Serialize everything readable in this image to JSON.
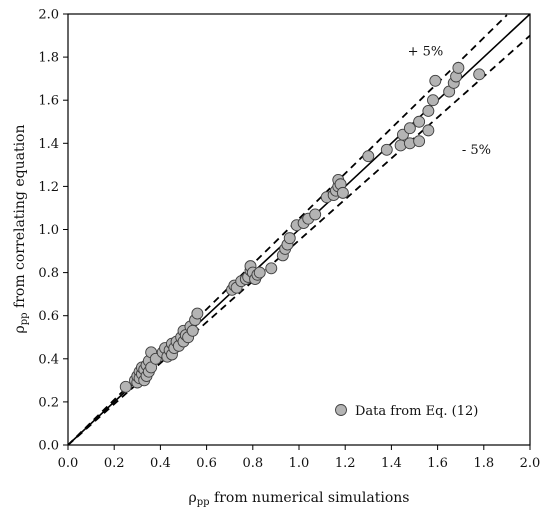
{
  "chart_data": {
    "type": "scatter",
    "xlabel": {
      "main": "ρ",
      "sub": "pp",
      "rest": " from numerical simulations"
    },
    "ylabel": {
      "main": "ρ",
      "sub": "pp",
      "rest": " from correlating equation"
    },
    "xlim": [
      0,
      2.0
    ],
    "ylim": [
      0,
      2.0
    ],
    "x_ticks": [
      "0.0",
      "0.2",
      "0.4",
      "0.6",
      "0.8",
      "1.0",
      "1.2",
      "1.4",
      "1.6",
      "1.8",
      "2.0"
    ],
    "y_ticks": [
      "0.0",
      "0.2",
      "0.4",
      "0.6",
      "0.8",
      "1.0",
      "1.2",
      "1.4",
      "1.6",
      "1.8",
      "2.0"
    ],
    "grid": false,
    "legend_position": "bottom-right",
    "colors": {
      "marker_fill": "#b4b4b4",
      "marker_stroke": "#404040",
      "line": "#000000"
    },
    "series": [
      {
        "name": "Data from Eq. (12)",
        "points": [
          [
            0.25,
            0.27
          ],
          [
            0.29,
            0.3
          ],
          [
            0.3,
            0.29
          ],
          [
            0.3,
            0.32
          ],
          [
            0.31,
            0.34
          ],
          [
            0.31,
            0.31
          ],
          [
            0.32,
            0.33
          ],
          [
            0.32,
            0.36
          ],
          [
            0.33,
            0.3
          ],
          [
            0.33,
            0.35
          ],
          [
            0.34,
            0.32
          ],
          [
            0.34,
            0.37
          ],
          [
            0.35,
            0.34
          ],
          [
            0.35,
            0.39
          ],
          [
            0.36,
            0.36
          ],
          [
            0.36,
            0.43
          ],
          [
            0.38,
            0.4
          ],
          [
            0.41,
            0.43
          ],
          [
            0.42,
            0.45
          ],
          [
            0.43,
            0.41
          ],
          [
            0.44,
            0.44
          ],
          [
            0.45,
            0.47
          ],
          [
            0.45,
            0.42
          ],
          [
            0.46,
            0.45
          ],
          [
            0.47,
            0.48
          ],
          [
            0.48,
            0.46
          ],
          [
            0.49,
            0.5
          ],
          [
            0.5,
            0.48
          ],
          [
            0.5,
            0.53
          ],
          [
            0.51,
            0.51
          ],
          [
            0.52,
            0.5
          ],
          [
            0.53,
            0.55
          ],
          [
            0.54,
            0.53
          ],
          [
            0.55,
            0.58
          ],
          [
            0.56,
            0.61
          ],
          [
            0.71,
            0.72
          ],
          [
            0.72,
            0.74
          ],
          [
            0.73,
            0.73
          ],
          [
            0.75,
            0.76
          ],
          [
            0.77,
            0.77
          ],
          [
            0.78,
            0.78
          ],
          [
            0.79,
            0.81
          ],
          [
            0.79,
            0.83
          ],
          [
            0.8,
            0.8
          ],
          [
            0.81,
            0.77
          ],
          [
            0.82,
            0.79
          ],
          [
            0.83,
            0.8
          ],
          [
            0.88,
            0.82
          ],
          [
            0.93,
            0.88
          ],
          [
            0.94,
            0.91
          ],
          [
            0.95,
            0.93
          ],
          [
            0.96,
            0.96
          ],
          [
            0.99,
            1.02
          ],
          [
            1.02,
            1.03
          ],
          [
            1.04,
            1.05
          ],
          [
            1.07,
            1.07
          ],
          [
            1.12,
            1.15
          ],
          [
            1.15,
            1.16
          ],
          [
            1.16,
            1.18
          ],
          [
            1.17,
            1.2
          ],
          [
            1.17,
            1.23
          ],
          [
            1.18,
            1.21
          ],
          [
            1.19,
            1.17
          ],
          [
            1.3,
            1.34
          ],
          [
            1.38,
            1.37
          ],
          [
            1.44,
            1.39
          ],
          [
            1.45,
            1.44
          ],
          [
            1.48,
            1.4
          ],
          [
            1.48,
            1.47
          ],
          [
            1.52,
            1.41
          ],
          [
            1.52,
            1.5
          ],
          [
            1.56,
            1.46
          ],
          [
            1.56,
            1.55
          ],
          [
            1.58,
            1.6
          ],
          [
            1.59,
            1.69
          ],
          [
            1.65,
            1.64
          ],
          [
            1.67,
            1.68
          ],
          [
            1.68,
            1.71
          ],
          [
            1.69,
            1.75
          ],
          [
            1.78,
            1.72
          ]
        ]
      }
    ],
    "reference_lines": [
      {
        "label": "",
        "slope": 1.0,
        "style": "solid",
        "x_end": 2.0
      },
      {
        "label": "+ 5%",
        "slope": 1.05,
        "style": "dashed",
        "x_end": 1.9
      },
      {
        "label": "- 5%",
        "slope": 0.95,
        "style": "dashed",
        "x_end": 2.0
      }
    ]
  }
}
